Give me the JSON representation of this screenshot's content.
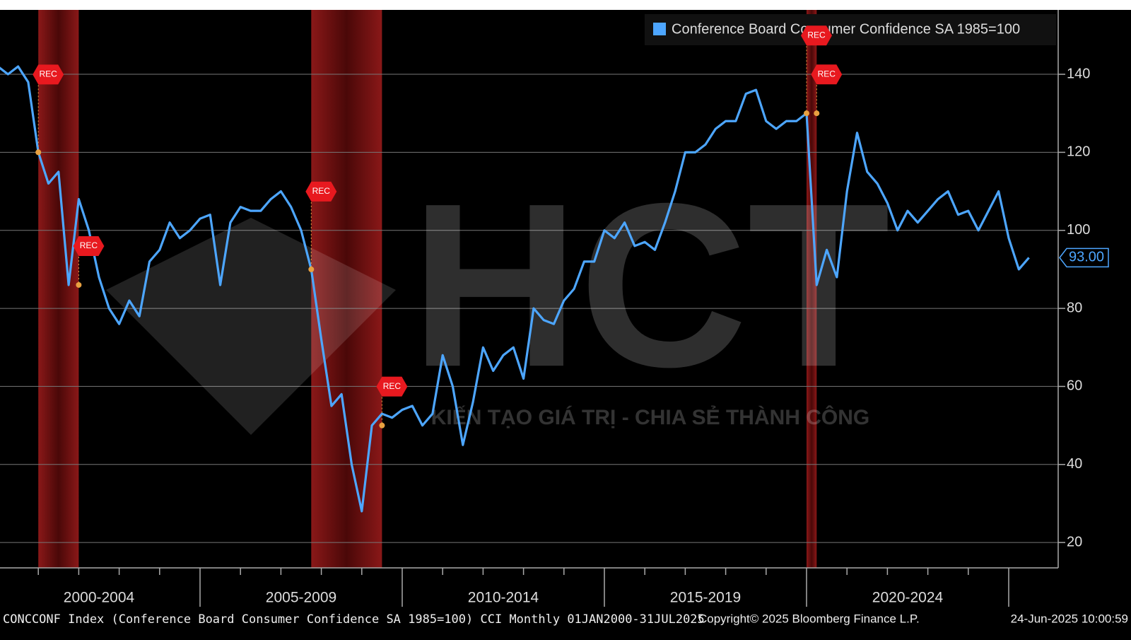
{
  "chart_data": {
    "type": "line",
    "x_period_labels": [
      "2000-2004",
      "2005-2009",
      "2010-2014",
      "2015-2019",
      "2020-2024"
    ],
    "series": [
      {
        "name": "Conference Board Consumer Confidence SA 1985=100",
        "color": "#4da6ff",
        "values": [
          142,
          140,
          142,
          138,
          120,
          112,
          115,
          86,
          108,
          100,
          88,
          80,
          76,
          82,
          78,
          92,
          95,
          102,
          98,
          100,
          103,
          104,
          86,
          102,
          106,
          105,
          105,
          108,
          110,
          106,
          100,
          90,
          72,
          55,
          58,
          40,
          28,
          50,
          53,
          52,
          54,
          55,
          50,
          53,
          68,
          60,
          45,
          56,
          70,
          64,
          68,
          70,
          62,
          80,
          77,
          76,
          82,
          85,
          92,
          92,
          100,
          98,
          102,
          96,
          97,
          95,
          102,
          110,
          120,
          120,
          122,
          126,
          128,
          128,
          135,
          136,
          128,
          126,
          128,
          128,
          130,
          86,
          95,
          88,
          110,
          125,
          115,
          112,
          107,
          100,
          105,
          102,
          105,
          108,
          110,
          104,
          105,
          100,
          105,
          110,
          98,
          90,
          93
        ],
        "value_labels": [
          null,
          null,
          null,
          null,
          null,
          null,
          null,
          null,
          null,
          null,
          null,
          null,
          null,
          null,
          null,
          null,
          null,
          null,
          null,
          null,
          null,
          null,
          null,
          null,
          null,
          null,
          null,
          null,
          null,
          null,
          null,
          null,
          null,
          null,
          null,
          null,
          null,
          null,
          null,
          null,
          null,
          null,
          null,
          null,
          null,
          null,
          null,
          null,
          null,
          null,
          null,
          null,
          null,
          null,
          null,
          null,
          null,
          null,
          null,
          null,
          null,
          null,
          null,
          null,
          null,
          null,
          null,
          null,
          null,
          null,
          null,
          null,
          null,
          null,
          null,
          null,
          null,
          null,
          null,
          null,
          null,
          null,
          null,
          null,
          null,
          null,
          null,
          null,
          null,
          null,
          null,
          null,
          null,
          null,
          null,
          null,
          null,
          null,
          null,
          null,
          null,
          null,
          "93.00"
        ]
      }
    ],
    "ylim": [
      13.5,
      156.5
    ],
    "yticks": [
      20,
      40,
      60,
      80,
      100,
      120,
      140
    ],
    "grid": true,
    "legend": "top-right",
    "recessions": [
      [
        4,
        7
      ],
      [
        31,
        37
      ],
      [
        80,
        80
      ]
    ],
    "recession_labels": [
      "REC",
      "REC",
      "REC",
      "REC",
      "REC",
      "REC"
    ],
    "footer": {
      "description": "CONCCONF Index (Conference Board Consumer Confidence SA 1985=100) CCI  Monthly 01JAN2000-31JUL2025",
      "copyright": "Copyright© 2025 Bloomberg Finance L.P.",
      "timestamp": "24-Jun-2025 10:00:59"
    }
  },
  "watermark": {
    "logo": "HCT",
    "slogan": "KIẾN TẠO GIÁ TRỊ - CHIA SẺ THÀNH CÔNG"
  }
}
